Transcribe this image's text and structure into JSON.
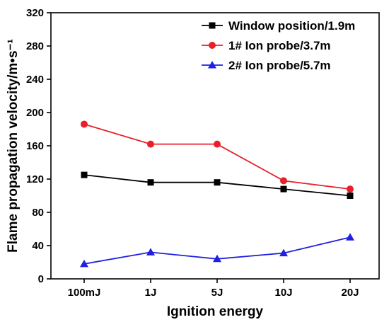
{
  "chart_data": {
    "type": "line",
    "xlabel": "Ignition energy",
    "ylabel": "Flame propagation velocity/m•s⁻¹",
    "categories": [
      "100mJ",
      "1J",
      "5J",
      "10J",
      "20J"
    ],
    "ylim": [
      0,
      320
    ],
    "yticks": [
      0,
      40,
      80,
      120,
      160,
      200,
      240,
      280,
      320
    ],
    "grid": false,
    "legend_position": "top-right",
    "series": [
      {
        "name": "Window position/1.9m",
        "color": "#000000",
        "marker": "square",
        "values": [
          125,
          116,
          116,
          108,
          100
        ]
      },
      {
        "name": "1# Ion probe/3.7m",
        "color": "#e8202a",
        "marker": "circle",
        "values": [
          186,
          162,
          162,
          118,
          108
        ]
      },
      {
        "name": "2# Ion probe/5.7m",
        "color": "#2020e0",
        "marker": "triangle",
        "values": [
          18,
          32,
          24,
          31,
          50
        ]
      }
    ]
  }
}
